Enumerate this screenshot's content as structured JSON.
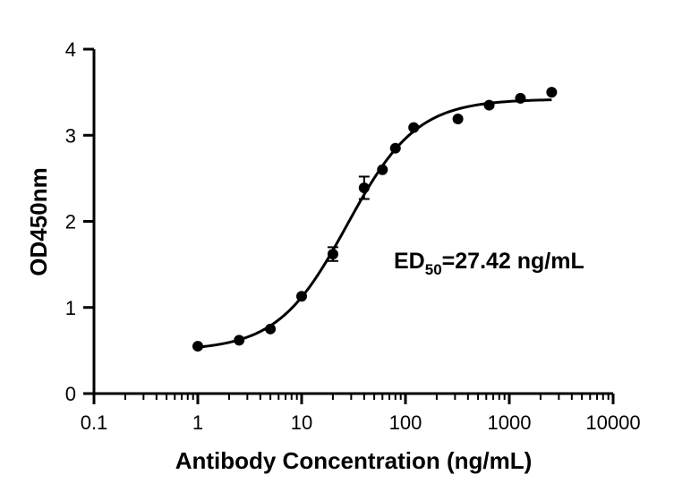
{
  "chart_data": {
    "type": "scatter",
    "xlabel": "Antibody Concentration (ng/mL)",
    "ylabel": "OD450nm",
    "x_scale": "log",
    "xlim": [
      0.1,
      10000
    ],
    "ylim": [
      0,
      4
    ],
    "x_ticks": [
      "0.1",
      "1",
      "10",
      "100",
      "1000",
      "10000"
    ],
    "y_ticks": [
      "0",
      "1",
      "2",
      "3",
      "4"
    ],
    "annotation": {
      "main": "ED",
      "sub": "50",
      "rest": "=27.42 ng/mL"
    },
    "points": [
      {
        "x": 1.0,
        "y": 0.55
      },
      {
        "x": 2.5,
        "y": 0.62
      },
      {
        "x": 5.0,
        "y": 0.75
      },
      {
        "x": 10.0,
        "y": 1.13
      },
      {
        "x": 20.0,
        "y": 1.62,
        "err": 0.08
      },
      {
        "x": 40.0,
        "y": 2.39,
        "err": 0.13
      },
      {
        "x": 60.0,
        "y": 2.6
      },
      {
        "x": 80.0,
        "y": 2.85
      },
      {
        "x": 120.0,
        "y": 3.09
      },
      {
        "x": 320.0,
        "y": 3.19
      },
      {
        "x": 640.0,
        "y": 3.35
      },
      {
        "x": 1280.0,
        "y": 3.43
      },
      {
        "x": 2560.0,
        "y": 3.5
      }
    ],
    "fit": {
      "model": "4PL",
      "bottom": 0.5,
      "top": 3.42,
      "ec50": 27.42,
      "hill": 1.3
    },
    "grid": false
  }
}
